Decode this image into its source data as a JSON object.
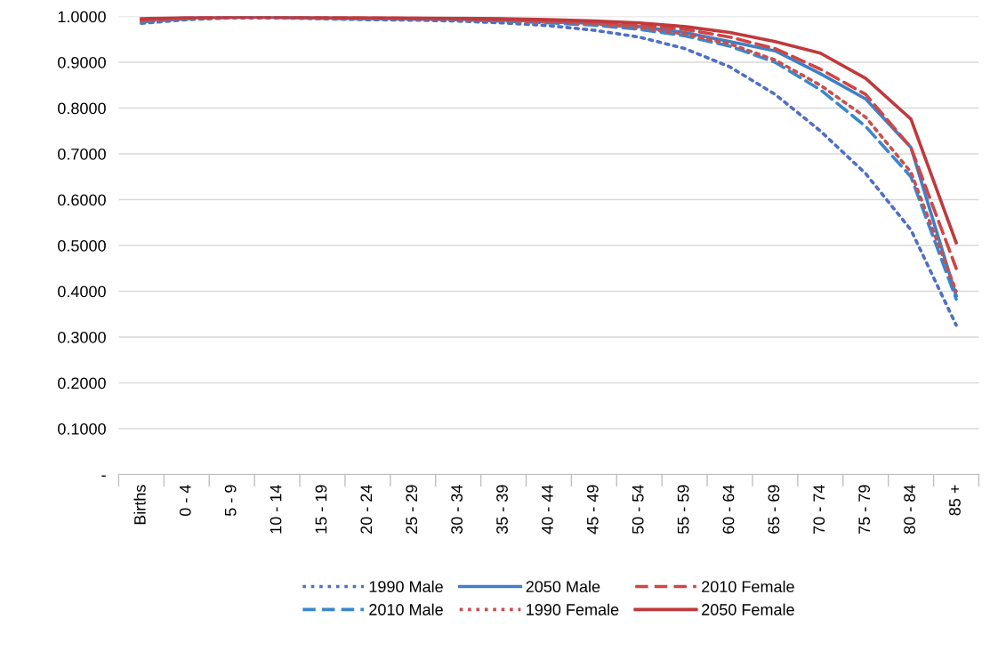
{
  "chart_data": {
    "type": "line",
    "categories": [
      "Births",
      "0 - 4",
      "5 - 9",
      "10 - 14",
      "15 - 19",
      "20 - 24",
      "25 - 29",
      "30 - 34",
      "35 - 39",
      "40 - 44",
      "45 - 49",
      "50 - 54",
      "55 - 59",
      "60 - 64",
      "65 - 69",
      "70 - 74",
      "75 - 79",
      "80 - 84",
      "85 +"
    ],
    "ylim": [
      0,
      1.0
    ],
    "yticks": [
      {
        "value": 0,
        "label": "-"
      },
      {
        "value": 0.1,
        "label": "0.1000"
      },
      {
        "value": 0.2,
        "label": "0.2000"
      },
      {
        "value": 0.3,
        "label": "0.3000"
      },
      {
        "value": 0.4,
        "label": "0.4000"
      },
      {
        "value": 0.5,
        "label": "0.5000"
      },
      {
        "value": 0.6,
        "label": "0.6000"
      },
      {
        "value": 0.7,
        "label": "0.7000"
      },
      {
        "value": 0.8,
        "label": "0.8000"
      },
      {
        "value": 0.9,
        "label": "0.9000"
      },
      {
        "value": 1.0,
        "label": "1.0000"
      }
    ],
    "grid": "y",
    "legend": "bottom",
    "series": [
      {
        "name": "1990 Male",
        "color": "#4f6fc4",
        "line_style": "dotted",
        "values": [
          0.985,
          0.993,
          0.997,
          0.997,
          0.995,
          0.993,
          0.992,
          0.99,
          0.986,
          0.98,
          0.97,
          0.955,
          0.93,
          0.89,
          0.83,
          0.75,
          0.657,
          0.534,
          0.326
        ]
      },
      {
        "name": "2010 Male",
        "color": "#3b87cc",
        "line_style": "dashed",
        "values": [
          0.988,
          0.995,
          0.998,
          0.998,
          0.996,
          0.995,
          0.994,
          0.993,
          0.99,
          0.986,
          0.981,
          0.972,
          0.958,
          0.935,
          0.9,
          0.84,
          0.76,
          0.65,
          0.383
        ]
      },
      {
        "name": "2050 Male",
        "color": "#3f7fc6",
        "line_style": "solid",
        "values": [
          0.992,
          0.997,
          0.999,
          0.998,
          0.997,
          0.996,
          0.995,
          0.994,
          0.992,
          0.989,
          0.985,
          0.978,
          0.965,
          0.945,
          0.925,
          0.875,
          0.82,
          0.714,
          0.39
        ]
      },
      {
        "name": "1990 Female",
        "color": "#c8504d",
        "line_style": "dotted",
        "values": [
          0.99,
          0.996,
          0.998,
          0.998,
          0.997,
          0.996,
          0.995,
          0.994,
          0.991,
          0.988,
          0.984,
          0.976,
          0.962,
          0.94,
          0.905,
          0.85,
          0.78,
          0.66,
          0.4
        ]
      },
      {
        "name": "2010 Female",
        "color": "#d04545",
        "line_style": "dashed",
        "values": [
          0.993,
          0.997,
          0.999,
          0.999,
          0.998,
          0.997,
          0.996,
          0.995,
          0.994,
          0.991,
          0.988,
          0.982,
          0.972,
          0.955,
          0.93,
          0.885,
          0.83,
          0.714,
          0.45
        ]
      },
      {
        "name": "2050 Female",
        "color": "#c0393b",
        "line_style": "solid",
        "values": [
          0.995,
          0.998,
          0.999,
          0.999,
          0.998,
          0.998,
          0.997,
          0.996,
          0.995,
          0.993,
          0.99,
          0.986,
          0.978,
          0.965,
          0.945,
          0.92,
          0.865,
          0.776,
          0.506
        ]
      }
    ]
  }
}
